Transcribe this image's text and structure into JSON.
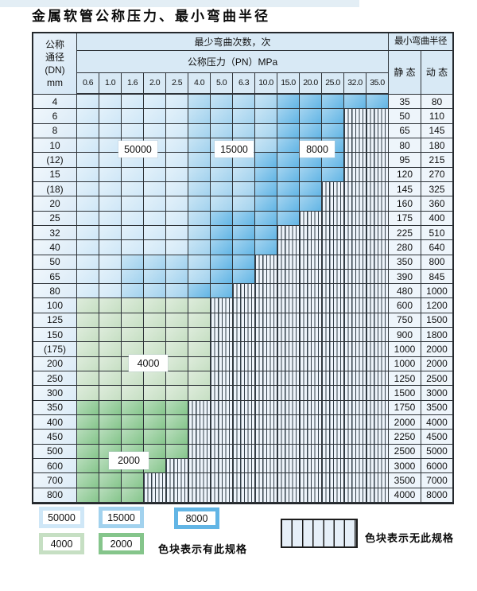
{
  "page": {
    "title": "金属软管公称压力、最小弯曲半径"
  },
  "colors": {
    "c50000": "#cfe7f7",
    "c15000": "#a2d2ee",
    "c8000": "#62b5e5",
    "c4000": "#c6dfc3",
    "c2000": "#85c58b",
    "header_bg": "#d8e9f5",
    "grid_line": "#2e3338"
  },
  "table": {
    "corner": {
      "line1": "公称",
      "line2": "通径",
      "line3": "(DN)",
      "line4": "mm"
    },
    "bend_header": "最少弯曲次数，次",
    "pressure_header": "公称压力（PN）MPa",
    "radius_header": "最小弯曲半径",
    "static_label": "静 态",
    "dynamic_label": "动 态",
    "pressures": [
      "0.6",
      "1.0",
      "1.6",
      "2.0",
      "2.5",
      "4.0",
      "5.0",
      "6.3",
      "10.0",
      "15.0",
      "20.0",
      "25.0",
      "32.0",
      "35.0"
    ],
    "zone_legend_note": "zones string: one char per pressure column; 5=50000, 1=15000, 8=8000, 4=4000, 2=2000, n=no-spec",
    "float_labels": [
      {
        "text": "50000"
      },
      {
        "text": "15000"
      },
      {
        "text": "8000"
      },
      {
        "text": "4000"
      },
      {
        "text": "2000"
      }
    ],
    "rows": [
      {
        "dn": "4",
        "zones": "55555111188888",
        "static": "35",
        "dynamic": "80"
      },
      {
        "dn": "6",
        "zones": "555551111888nn",
        "static": "50",
        "dynamic": "110"
      },
      {
        "dn": "8",
        "zones": "555551111888nn",
        "static": "65",
        "dynamic": "145"
      },
      {
        "dn": "10",
        "zones": "555551111888nn",
        "static": "80",
        "dynamic": "180"
      },
      {
        "dn": "(12)",
        "zones": "555551118888nn",
        "static": "95",
        "dynamic": "215"
      },
      {
        "dn": "15",
        "zones": "555551118888nn",
        "static": "120",
        "dynamic": "270"
      },
      {
        "dn": "(18)",
        "zones": "55555111888nnn",
        "static": "145",
        "dynamic": "325"
      },
      {
        "dn": "20",
        "zones": "55555111888nnn",
        "static": "160",
        "dynamic": "360"
      },
      {
        "dn": "25",
        "zones": "5555518888nnnn",
        "static": "175",
        "dynamic": "400"
      },
      {
        "dn": "32",
        "zones": "555551888nnnnn",
        "static": "225",
        "dynamic": "510"
      },
      {
        "dn": "40",
        "zones": "555551888nnnnn",
        "static": "280",
        "dynamic": "640"
      },
      {
        "dn": "50",
        "zones": "55111188nnnnnn",
        "static": "350",
        "dynamic": "800"
      },
      {
        "dn": "65",
        "zones": "55111188nnnnnn",
        "static": "390",
        "dynamic": "845"
      },
      {
        "dn": "80",
        "zones": "5511188nnnnnnn",
        "static": "480",
        "dynamic": "1000"
      },
      {
        "dn": "100",
        "zones": "444444nnnnnnnn",
        "static": "600",
        "dynamic": "1200"
      },
      {
        "dn": "125",
        "zones": "444444nnnnnnnn",
        "static": "750",
        "dynamic": "1500"
      },
      {
        "dn": "150",
        "zones": "444444nnnnnnnn",
        "static": "900",
        "dynamic": "1800"
      },
      {
        "dn": "(175)",
        "zones": "444444nnnnnnnn",
        "static": "1000",
        "dynamic": "2000"
      },
      {
        "dn": "200",
        "zones": "444444nnnnnnnn",
        "static": "1000",
        "dynamic": "2000"
      },
      {
        "dn": "250",
        "zones": "444444nnnnnnnn",
        "static": "1250",
        "dynamic": "2500"
      },
      {
        "dn": "300",
        "zones": "444444nnnnnnnn",
        "static": "1500",
        "dynamic": "3000"
      },
      {
        "dn": "350",
        "zones": "22222nnnnnnnnn",
        "static": "1750",
        "dynamic": "3500"
      },
      {
        "dn": "400",
        "zones": "22222nnnnnnnnn",
        "static": "2000",
        "dynamic": "4000"
      },
      {
        "dn": "450",
        "zones": "22222nnnnnnnnn",
        "static": "2250",
        "dynamic": "4500"
      },
      {
        "dn": "500",
        "zones": "22222nnnnnnnnn",
        "static": "2500",
        "dynamic": "5000"
      },
      {
        "dn": "600",
        "zones": "2222nnnnnnnnnn",
        "static": "3000",
        "dynamic": "6000"
      },
      {
        "dn": "700",
        "zones": "222nnnnnnnnnnn",
        "static": "3500",
        "dynamic": "7000"
      },
      {
        "dn": "800",
        "zones": "222nnnnnnnnnnn",
        "static": "4000",
        "dynamic": "8000"
      }
    ]
  },
  "legend": {
    "items": [
      {
        "label": "50000",
        "zone": "5"
      },
      {
        "label": "15000",
        "zone": "1"
      },
      {
        "label": "8000",
        "zone": "8"
      },
      {
        "label": "4000",
        "zone": "4"
      },
      {
        "label": "2000",
        "zone": "2"
      }
    ],
    "has_spec_text": "色块表示有此规格",
    "no_spec_text": "色块表示无此规格"
  }
}
